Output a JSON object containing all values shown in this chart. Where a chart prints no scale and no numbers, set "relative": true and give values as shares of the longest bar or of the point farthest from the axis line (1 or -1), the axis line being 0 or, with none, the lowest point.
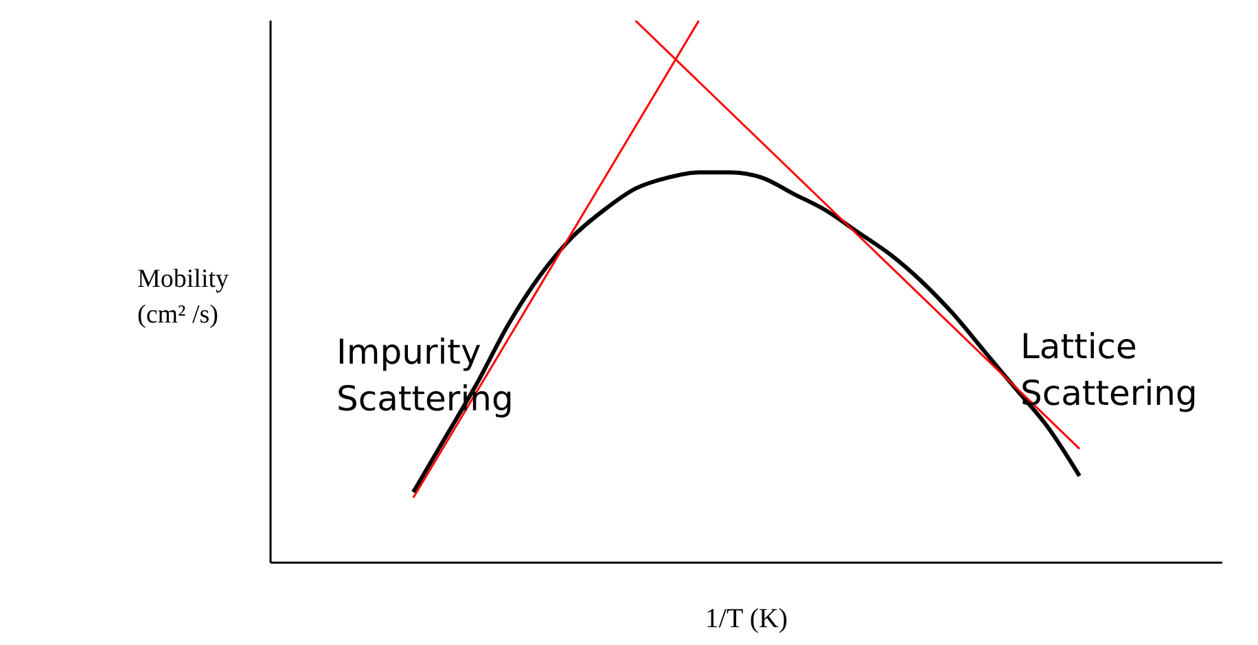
{
  "chart_data": {
    "type": "line",
    "relative": true,
    "xlabel": "1/T (K)",
    "ylabel": "Mobility (cm² /s)",
    "annotations": [
      "Impurity Scattering",
      "Lattice Scattering"
    ],
    "grid": false,
    "legend": false,
    "marker": "none",
    "line_style": "solid",
    "categories": [
      null,
      null,
      null,
      null,
      null,
      null,
      null,
      null,
      null,
      null,
      null,
      null,
      null,
      null,
      null,
      null,
      null,
      null,
      null,
      null,
      null,
      null,
      null,
      null,
      null,
      null,
      null,
      null,
      null,
      null
    ],
    "series": [
      {
        "color": "#000000",
        "values": [
          null,
          null,
          null,
          null,
          0.13,
          0.23,
          0.33,
          0.44,
          0.53,
          0.6,
          0.65,
          0.69,
          0.71,
          0.72,
          0.72,
          0.71,
          0.68,
          0.65,
          0.61,
          0.57,
          0.52,
          0.46,
          0.39,
          0.32,
          0.25,
          0.16,
          null,
          null,
          null,
          null
        ]
      },
      {
        "color": "#ff0000",
        "values": [
          null,
          null,
          null,
          null,
          0.12,
          null,
          null,
          null,
          null,
          null,
          null,
          null,
          null,
          1.0,
          null,
          null,
          null,
          null,
          null,
          null,
          null,
          null,
          null,
          null,
          null,
          null,
          null,
          null,
          null,
          null
        ]
      },
      {
        "color": "#ff0000",
        "values": [
          null,
          null,
          null,
          null,
          null,
          null,
          null,
          null,
          null,
          null,
          null,
          1.0,
          null,
          null,
          null,
          null,
          null,
          null,
          null,
          null,
          null,
          null,
          null,
          null,
          null,
          0.21,
          null,
          null,
          null,
          null
        ]
      }
    ]
  }
}
